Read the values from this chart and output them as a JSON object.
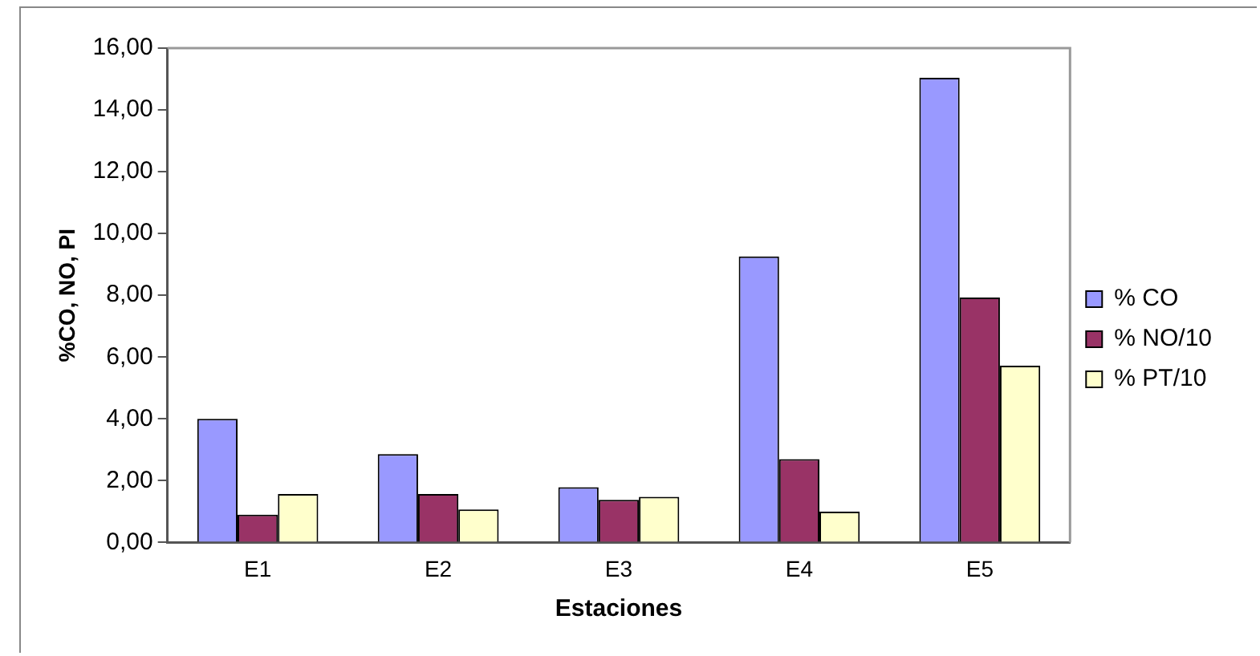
{
  "chart_data": {
    "type": "bar",
    "xlabel": "Estaciones",
    "ylabel": "%CO, NO, PI",
    "categories": [
      "E1",
      "E2",
      "E3",
      "E4",
      "E5"
    ],
    "series": [
      {
        "name": "% CO",
        "color": "#9999ff",
        "values": [
          4.0,
          2.86,
          1.79,
          9.26,
          15.04
        ]
      },
      {
        "name": "% NO/10",
        "color": "#993366",
        "values": [
          0.9,
          1.57,
          1.38,
          2.7,
          7.93
        ]
      },
      {
        "name": "% PT/10",
        "color": "#ffffcc",
        "values": [
          1.57,
          1.07,
          1.48,
          1.0,
          5.72
        ]
      }
    ],
    "ylim": [
      0,
      16
    ],
    "yticks": [
      {
        "value": 0,
        "label": "0,00"
      },
      {
        "value": 2,
        "label": "2,00"
      },
      {
        "value": 4,
        "label": "4,00"
      },
      {
        "value": 6,
        "label": "6,00"
      },
      {
        "value": 8,
        "label": "8,00"
      },
      {
        "value": 10,
        "label": "10,00"
      },
      {
        "value": 12,
        "label": "12,00"
      },
      {
        "value": 14,
        "label": "14,00"
      },
      {
        "value": 16,
        "label": "16,00"
      }
    ],
    "grid": false,
    "legend": "right"
  }
}
